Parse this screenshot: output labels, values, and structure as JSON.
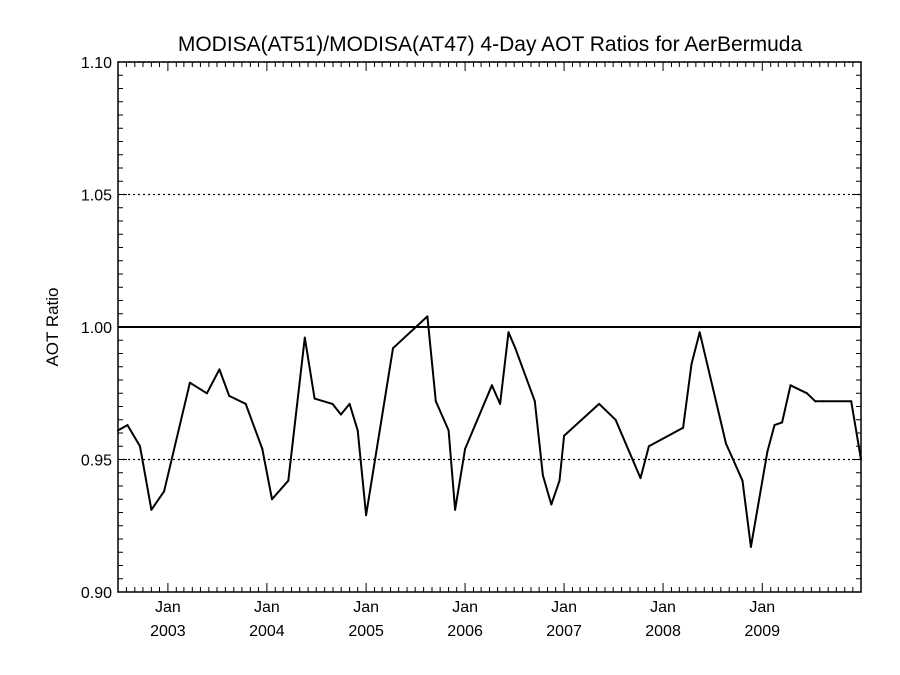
{
  "chart_data": {
    "type": "line",
    "title": "MODISA(AT51)/MODISA(AT47) 4-Day AOT Ratios for AerBermuda",
    "ylabel": "AOT Ratio",
    "xlabel": "",
    "ylim": [
      0.9,
      1.1
    ],
    "xlim": [
      "2002-07-01",
      "2009-12-31"
    ],
    "yticks": [
      {
        "value": 0.9,
        "label": "0.90"
      },
      {
        "value": 0.95,
        "label": "0.95"
      },
      {
        "value": 1.0,
        "label": "1.00"
      },
      {
        "value": 1.05,
        "label": "1.05"
      },
      {
        "value": 1.1,
        "label": "1.10"
      }
    ],
    "xticks": [
      {
        "date": "2003-01-01",
        "month": "Jan",
        "year": "2003"
      },
      {
        "date": "2004-01-01",
        "month": "Jan",
        "year": "2004"
      },
      {
        "date": "2005-01-01",
        "month": "Jan",
        "year": "2005"
      },
      {
        "date": "2006-01-01",
        "month": "Jan",
        "year": "2006"
      },
      {
        "date": "2007-01-01",
        "month": "Jan",
        "year": "2007"
      },
      {
        "date": "2008-01-01",
        "month": "Jan",
        "year": "2008"
      },
      {
        "date": "2009-01-01",
        "month": "Jan",
        "year": "2009"
      }
    ],
    "reference_lines": [
      {
        "value": 1.0,
        "style": "solid"
      },
      {
        "value": 0.95,
        "style": "dotted"
      },
      {
        "value": 1.05,
        "style": "dotted"
      },
      {
        "value": 1.1,
        "style": "dotted"
      }
    ],
    "grid": false,
    "series": [
      {
        "points": [
          [
            "2002-07-01",
            0.961
          ],
          [
            "2002-08-05",
            0.963
          ],
          [
            "2002-09-20",
            0.955
          ],
          [
            "2002-11-01",
            0.931
          ],
          [
            "2002-12-18",
            0.938
          ],
          [
            "2003-03-23",
            0.979
          ],
          [
            "2003-05-25",
            0.975
          ],
          [
            "2003-07-10",
            0.984
          ],
          [
            "2003-08-15",
            0.974
          ],
          [
            "2003-10-15",
            0.971
          ],
          [
            "2003-12-15",
            0.954
          ],
          [
            "2004-01-20",
            0.935
          ],
          [
            "2004-03-20",
            0.942
          ],
          [
            "2004-05-20",
            0.996
          ],
          [
            "2004-06-25",
            0.973
          ],
          [
            "2004-08-30",
            0.971
          ],
          [
            "2004-09-30",
            0.967
          ],
          [
            "2004-11-01",
            0.971
          ],
          [
            "2004-12-01",
            0.961
          ],
          [
            "2005-01-01",
            0.929
          ],
          [
            "2005-04-10",
            0.992
          ],
          [
            "2005-08-15",
            1.004
          ],
          [
            "2005-09-15",
            0.972
          ],
          [
            "2005-11-01",
            0.961
          ],
          [
            "2005-11-25",
            0.931
          ],
          [
            "2006-01-01",
            0.954
          ],
          [
            "2006-04-10",
            0.978
          ],
          [
            "2006-05-10",
            0.971
          ],
          [
            "2006-06-10",
            0.998
          ],
          [
            "2006-07-05",
            0.992
          ],
          [
            "2006-09-15",
            0.972
          ],
          [
            "2006-10-15",
            0.944
          ],
          [
            "2006-11-15",
            0.933
          ],
          [
            "2006-12-15",
            0.942
          ],
          [
            "2007-01-01",
            0.959
          ],
          [
            "2007-05-10",
            0.971
          ],
          [
            "2007-07-10",
            0.965
          ],
          [
            "2007-10-10",
            0.943
          ],
          [
            "2007-11-10",
            0.955
          ],
          [
            "2008-03-15",
            0.962
          ],
          [
            "2008-04-15",
            0.986
          ],
          [
            "2008-05-15",
            0.998
          ],
          [
            "2008-08-20",
            0.956
          ],
          [
            "2008-10-20",
            0.942
          ],
          [
            "2008-11-20",
            0.917
          ],
          [
            "2009-01-20",
            0.953
          ],
          [
            "2009-02-15",
            0.963
          ],
          [
            "2009-03-15",
            0.964
          ],
          [
            "2009-04-15",
            0.978
          ],
          [
            "2009-06-15",
            0.975
          ],
          [
            "2009-07-15",
            0.972
          ],
          [
            "2009-08-15",
            0.972
          ],
          [
            "2009-11-25",
            0.972
          ],
          [
            "2009-12-31",
            0.95
          ]
        ]
      }
    ]
  }
}
